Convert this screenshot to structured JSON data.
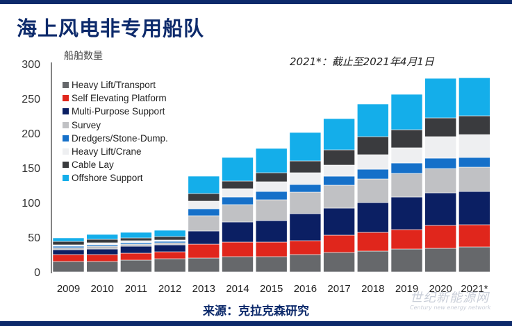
{
  "header": {
    "title": "海上风电非专用船队"
  },
  "footer": {
    "source": "来源：克拉克森研究",
    "watermark_cn": "世纪新能源网",
    "watermark_en": "Century new energy network"
  },
  "chart_data": {
    "type": "bar",
    "stacked": true,
    "title": "海上风电非专用船队",
    "ylabel": "船舶数量",
    "xlabel": "",
    "ylim": [
      0,
      300
    ],
    "yticks": [
      0,
      50,
      100,
      150,
      200,
      250,
      300
    ],
    "grid": false,
    "legend_position": "top-left",
    "annotation": "2021*：截止至2021年4月1日",
    "categories": [
      "2009",
      "2010",
      "2011",
      "2012",
      "2013",
      "2014",
      "2015",
      "2016",
      "2017",
      "2018",
      "2019",
      "2020",
      "2021*"
    ],
    "series": [
      {
        "name": "Heavy Lift/Transport",
        "color": "#66686b",
        "values": [
          15,
          15,
          17,
          19,
          20,
          22,
          22,
          25,
          28,
          30,
          33,
          34,
          36
        ]
      },
      {
        "name": "Self Elevating Platform",
        "color": "#e0261c",
        "values": [
          10,
          10,
          10,
          10,
          20,
          21,
          21,
          20,
          25,
          27,
          28,
          33,
          32
        ]
      },
      {
        "name": "Multi-Purpose Support",
        "color": "#0b1f63",
        "values": [
          7,
          8,
          10,
          10,
          19,
          29,
          31,
          39,
          39,
          43,
          47,
          47,
          48
        ]
      },
      {
        "name": "Survey",
        "color": "#c0c1c4",
        "values": [
          3,
          4,
          3,
          3,
          22,
          25,
          30,
          31,
          33,
          34,
          34,
          35,
          35
        ]
      },
      {
        "name": "Dredgers/Stone-Dump.",
        "color": "#1570c9",
        "values": [
          2,
          2,
          2,
          2,
          10,
          11,
          12,
          11,
          13,
          14,
          15,
          15,
          14
        ]
      },
      {
        "name": "Heavy Lift/Crane",
        "color": "#eeeff1",
        "values": [
          2,
          3,
          3,
          2,
          11,
          12,
          14,
          17,
          16,
          21,
          22,
          31,
          33
        ]
      },
      {
        "name": "Cable Lay",
        "color": "#3a3b3e",
        "values": [
          5,
          5,
          4,
          5,
          11,
          11,
          13,
          17,
          22,
          26,
          26,
          27,
          27
        ]
      },
      {
        "name": "Offshore Support",
        "color": "#14aeea",
        "values": [
          5,
          7,
          8,
          9,
          25,
          34,
          35,
          41,
          45,
          47,
          51,
          57,
          55
        ]
      }
    ]
  }
}
